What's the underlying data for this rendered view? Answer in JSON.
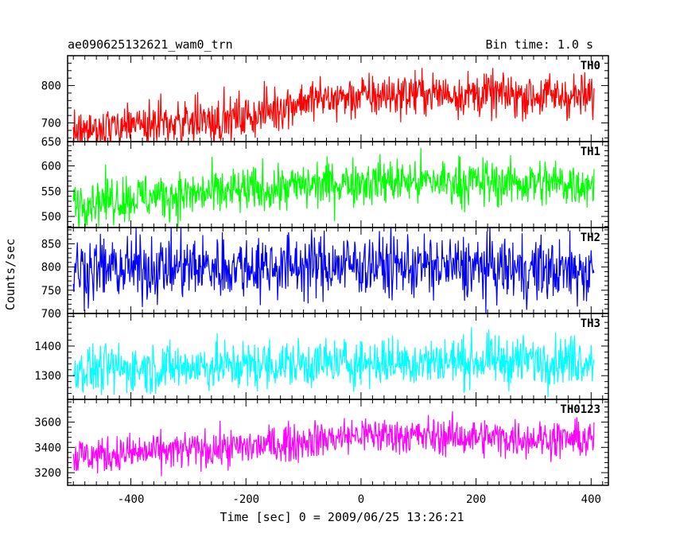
{
  "header": {
    "title": "ae090625132621_wam0_trn",
    "bin_time": "Bin time: 1.0 s"
  },
  "chart_data": {
    "type": "line",
    "xlabel": "Time [sec] 0 = 2009/06/25 13:26:21",
    "ylabel": "Counts/sec",
    "xlim": [
      -510,
      430
    ],
    "x_ticks": [
      -400,
      -200,
      0,
      200,
      400
    ],
    "x_range": [
      -500,
      405
    ],
    "x_step": 1,
    "panels": [
      {
        "name": "TH0",
        "color": "#ff0000",
        "ylim": [
          650,
          880
        ],
        "y_ticks": [
          650,
          700,
          800
        ],
        "trend": [
          [
            -500,
            680
          ],
          [
            -200,
            715
          ],
          [
            -100,
            760
          ],
          [
            100,
            780
          ],
          [
            405,
            770
          ]
        ],
        "noise": 30
      },
      {
        "name": "TH1",
        "color": "#00ff00",
        "ylim": [
          478,
          648
        ],
        "y_ticks": [
          500,
          550,
          600
        ],
        "trend": [
          [
            -500,
            530
          ],
          [
            -200,
            550
          ],
          [
            0,
            570
          ],
          [
            405,
            565
          ]
        ],
        "noise": 24
      },
      {
        "name": "TH2",
        "color": "#0000ff",
        "ylim": [
          700,
          885
        ],
        "y_ticks": [
          700,
          750,
          800,
          850
        ],
        "trend": [
          [
            -500,
            795
          ],
          [
            0,
            805
          ],
          [
            405,
            790
          ]
        ],
        "noise": 35
      },
      {
        "name": "TH3",
        "color": "#00ffff",
        "ylim": [
          1220,
          1510
        ],
        "y_ticks": [
          1300,
          1400
        ],
        "trend": [
          [
            -500,
            1320
          ],
          [
            0,
            1345
          ],
          [
            405,
            1355
          ]
        ],
        "noise": 42
      },
      {
        "name": "TH0123",
        "color": "#ff00ff",
        "ylim": [
          3100,
          3780
        ],
        "y_ticks": [
          3200,
          3400,
          3600
        ],
        "trend": [
          [
            -500,
            3330
          ],
          [
            -200,
            3400
          ],
          [
            0,
            3500
          ],
          [
            405,
            3460
          ]
        ],
        "noise": 75
      }
    ]
  }
}
